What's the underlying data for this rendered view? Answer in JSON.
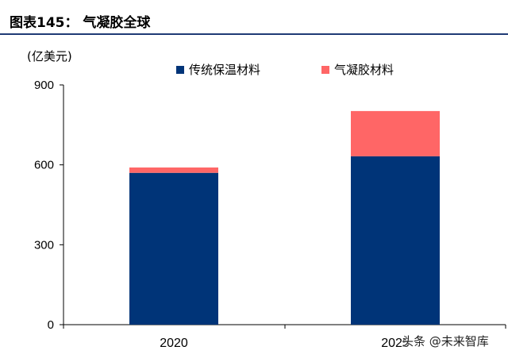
{
  "figure": {
    "title": "图表145：  气凝胶全球",
    "watermark": "头条 @未来智库"
  },
  "colors": {
    "series_1": "#003478",
    "series_2": "#ff6666",
    "header_rule": "#1f3a75"
  },
  "chart_data": {
    "type": "bar",
    "stacked": true,
    "unit_label": "(亿美元)",
    "categories": [
      "2020",
      "2025"
    ],
    "series": [
      {
        "name": "传统保温材料",
        "values": [
          570,
          632
        ]
      },
      {
        "name": "气凝胶材料",
        "values": [
          20,
          170
        ]
      }
    ],
    "ylim": [
      0,
      900
    ],
    "yticks": [
      "0",
      "300",
      "600",
      "900"
    ],
    "grid": false,
    "legend": "top"
  }
}
